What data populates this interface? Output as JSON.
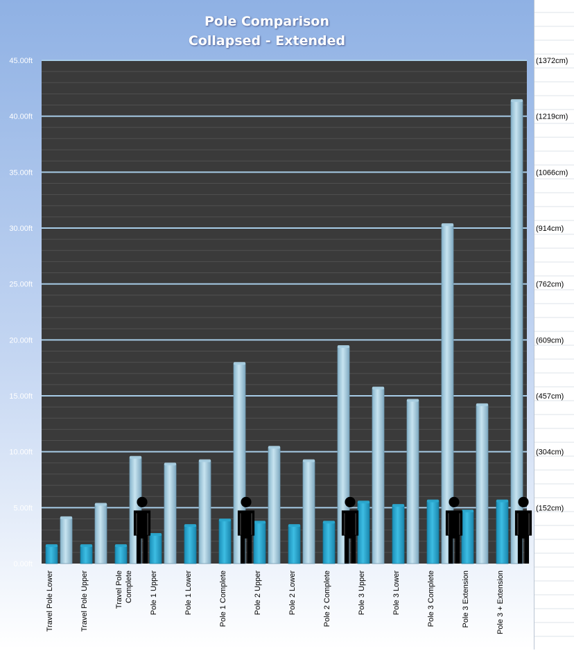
{
  "chart_data": {
    "type": "bar",
    "title": "Pole Comparison",
    "subtitle": "Collapsed - Extended",
    "xlabel": "",
    "ylabel": "",
    "ylim": [
      0,
      45
    ],
    "y_ticks": [
      "0.00ft",
      "5.00ft",
      "10.00ft",
      "15.00ft",
      "20.00ft",
      "25.00ft",
      "30.00ft",
      "35.00ft",
      "40.00ft",
      "45.00ft"
    ],
    "y_ticks_cm": [
      "(152cm)",
      "(304cm)",
      "(457cm)",
      "(609cm)",
      "(762cm)",
      "(914cm)",
      "(1066cm)",
      "(1219cm)",
      "(1372cm)"
    ],
    "categories": [
      "Travel Pole Lower",
      "Travel Pole Upper",
      "Travel Pole Complete",
      "Pole  1 Upper",
      "Pole  1 Lower",
      "Pole  1 Complete",
      "Pole  2 Upper",
      "Pole  2  Lower",
      "Pole  2 Complete",
      "Pole  3 Upper",
      "Pole  3  Lower",
      "Pole  3 Complete",
      "Pole  3 Extension",
      "Pole  3 + Extension"
    ],
    "series": [
      {
        "values": [
          1.6,
          1.6,
          1.6,
          2.6,
          3.4,
          3.9,
          3.7,
          3.4,
          3.7,
          5.5,
          5.2,
          5.6,
          4.7,
          5.6
        ]
      },
      {
        "values": [
          4.1,
          5.3,
          9.5,
          8.9,
          9.2,
          17.9,
          10.4,
          9.2,
          19.4,
          15.7,
          14.6,
          30.3,
          14.2,
          41.4
        ]
      }
    ],
    "person_height_ft": 6,
    "person_after_categories": [
      2,
      5,
      8,
      11,
      13
    ],
    "grid": true,
    "legend": "none",
    "colors": {
      "collapsed": "#2aa8cf",
      "extended": "#a9cfe2",
      "plot_background": "#3a3a3a",
      "major_grid": "#a8cde8",
      "background_top": "#8fb1e4",
      "background_bottom": "#ffffff",
      "person": "#000000"
    }
  }
}
